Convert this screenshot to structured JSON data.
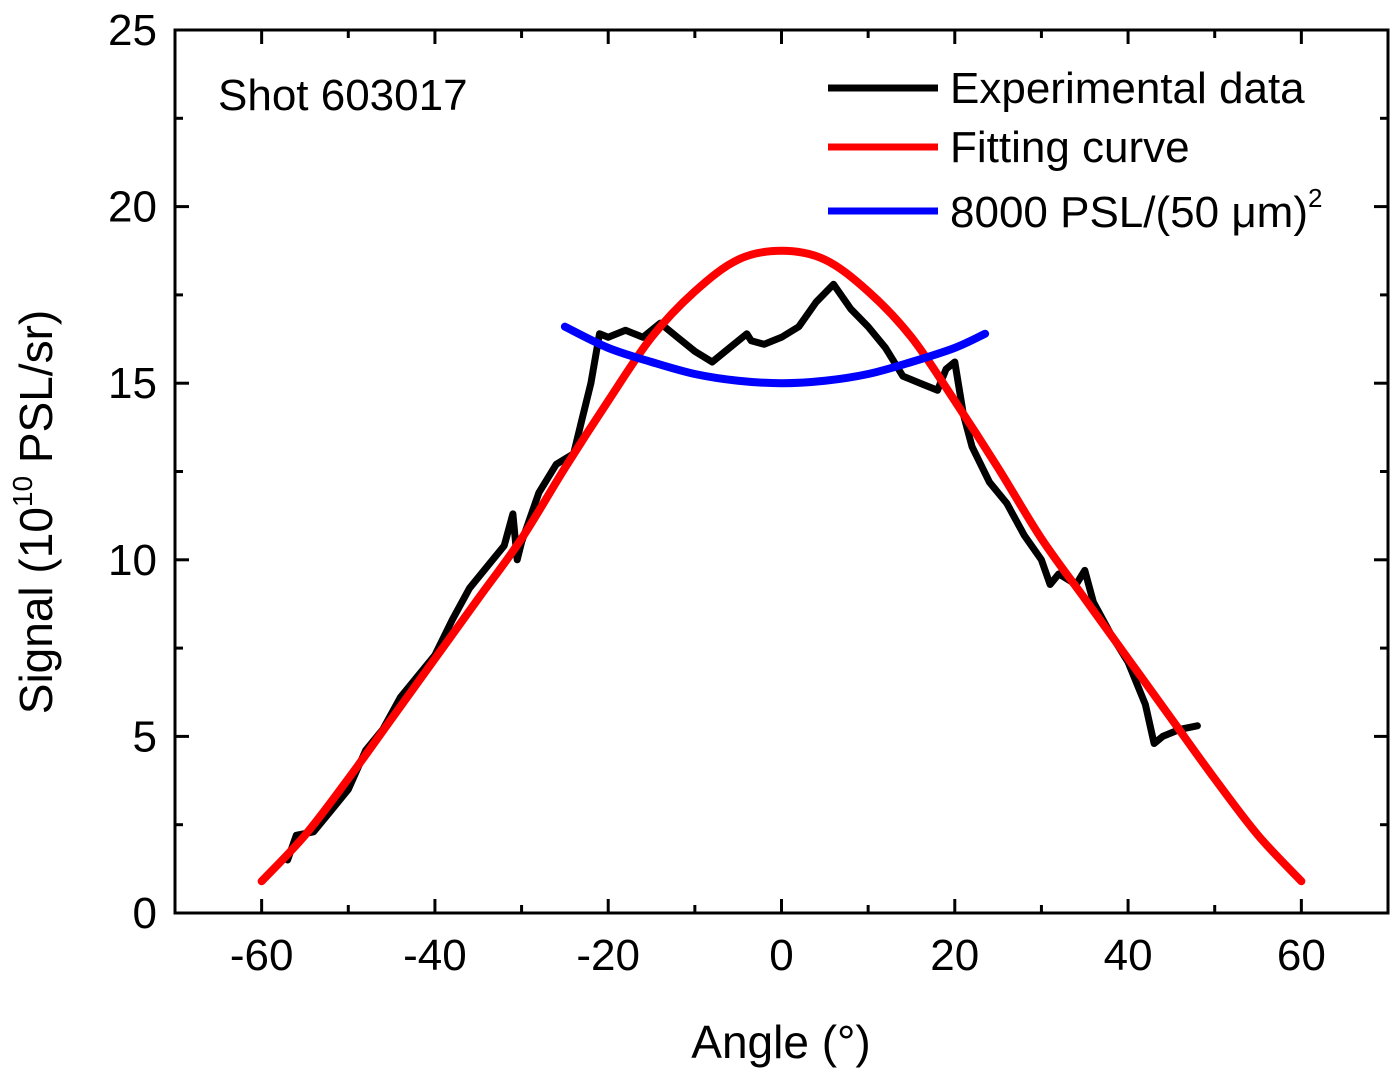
{
  "chart_data": {
    "type": "line",
    "xlabel": "Angle (°)",
    "ylabel": "Signal (10",
    "ylabel_sup": "10",
    "ylabel_tail": " PSL/sr)",
    "xlim": [
      -70,
      70
    ],
    "ylim": [
      0,
      25
    ],
    "xticks": [
      -60,
      -40,
      -20,
      0,
      20,
      40,
      60
    ],
    "yticks": [
      0,
      5,
      10,
      15,
      20,
      25
    ],
    "grid": false,
    "legend_position": "top-right",
    "annotation": "Shot 603017",
    "series": [
      {
        "name": "Experimental data",
        "color": "#000000",
        "x": [
          -57,
          -56,
          -54,
          -52,
          -50,
          -48,
          -46,
          -44,
          -42,
          -40,
          -38,
          -36,
          -34,
          -32,
          -31,
          -30.5,
          -30,
          -28,
          -26,
          -24,
          -23,
          -22,
          -21,
          -20,
          -18,
          -16,
          -14,
          -12,
          -10,
          -8,
          -6,
          -4,
          -3.5,
          -2,
          0,
          2,
          4,
          6,
          8,
          10,
          12,
          14,
          16,
          18,
          19,
          20,
          21,
          22,
          24,
          26,
          28,
          30,
          31,
          32,
          34,
          35,
          36,
          38,
          40,
          42,
          43,
          44,
          46,
          48
        ],
        "y": [
          1.5,
          2.2,
          2.3,
          2.9,
          3.5,
          4.6,
          5.2,
          6.1,
          6.7,
          7.3,
          8.3,
          9.2,
          9.8,
          10.4,
          11.3,
          10.0,
          10.5,
          11.9,
          12.7,
          13.0,
          14.0,
          15.0,
          16.4,
          16.3,
          16.5,
          16.3,
          16.7,
          16.3,
          15.9,
          15.6,
          16.0,
          16.4,
          16.2,
          16.1,
          16.3,
          16.6,
          17.3,
          17.8,
          17.1,
          16.6,
          16.0,
          15.2,
          15.0,
          14.8,
          15.4,
          15.6,
          14.1,
          13.2,
          12.2,
          11.6,
          10.7,
          10.0,
          9.3,
          9.6,
          9.3,
          9.7,
          8.8,
          7.9,
          7.1,
          5.9,
          4.8,
          5.0,
          5.2,
          5.3
        ]
      },
      {
        "name": "Fitting curve",
        "color": "#ff0000",
        "x": [
          -60,
          -55,
          -50,
          -45,
          -40,
          -35,
          -30,
          -25,
          -20,
          -15,
          -10,
          -5,
          0,
          5,
          10,
          15,
          20,
          25,
          30,
          35,
          40,
          45,
          50,
          55,
          60
        ],
        "y": [
          0.9,
          2.2,
          3.8,
          5.5,
          7.2,
          8.9,
          10.6,
          12.6,
          14.5,
          16.3,
          17.6,
          18.5,
          18.75,
          18.5,
          17.6,
          16.3,
          14.5,
          12.6,
          10.6,
          8.9,
          7.2,
          5.5,
          3.8,
          2.2,
          0.9
        ]
      },
      {
        "name": "8000 PSL/(50 μm)",
        "name_sup": "2",
        "color": "#0000ff",
        "x": [
          -25,
          -20,
          -15,
          -10,
          -5,
          0,
          5,
          10,
          15,
          20,
          23.5
        ],
        "y": [
          16.6,
          16.0,
          15.6,
          15.26,
          15.07,
          15.0,
          15.07,
          15.26,
          15.6,
          16.0,
          16.4
        ]
      }
    ]
  }
}
